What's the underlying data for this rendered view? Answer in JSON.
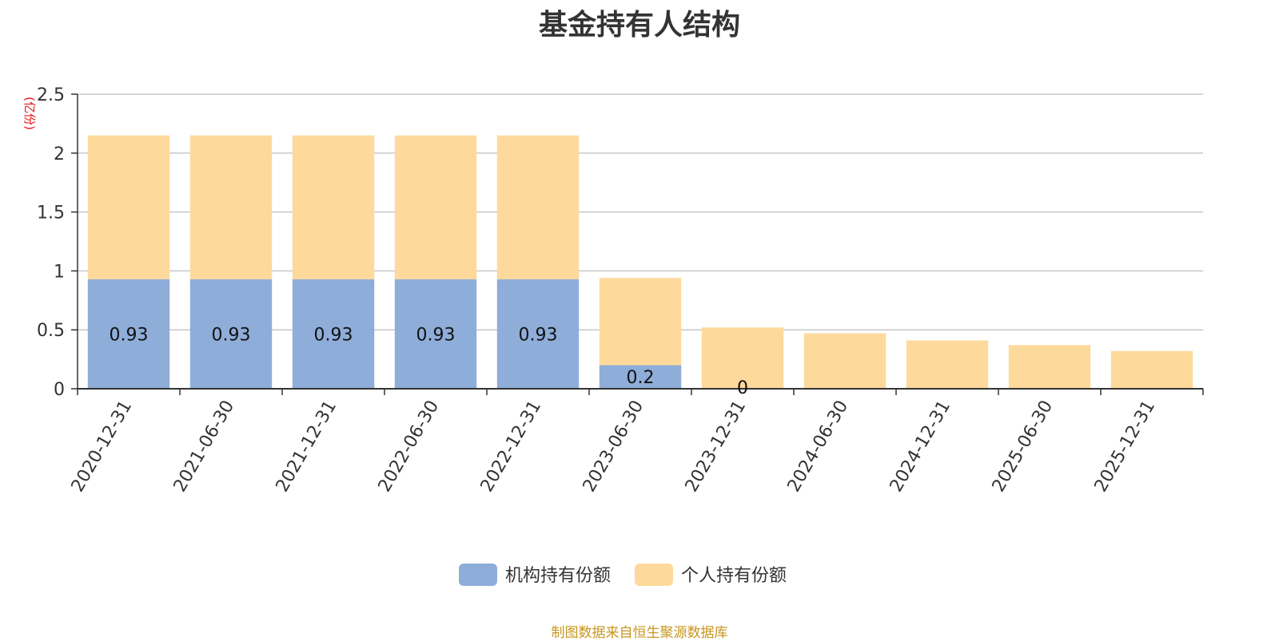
{
  "chart_data": {
    "type": "bar",
    "stacked": true,
    "title": "基金持有人结构",
    "unit_label": "(亿份)",
    "categories": [
      "2020-12-31",
      "2021-06-30",
      "2021-12-31",
      "2022-06-30",
      "2022-12-31",
      "2023-06-30",
      "2023-12-31",
      "2024-06-30",
      "2024-12-31",
      "2025-06-30",
      "2025-12-31"
    ],
    "series": [
      {
        "name": "机构持有份额",
        "color": "#8eadd9",
        "values": [
          0.93,
          0.93,
          0.93,
          0.93,
          0.93,
          0.2,
          0,
          0,
          0,
          0,
          0
        ],
        "labels": [
          "0.93",
          "0.93",
          "0.93",
          "0.93",
          "0.93",
          "0.2",
          "0",
          "",
          "",
          "",
          ""
        ]
      },
      {
        "name": "个人持有份额",
        "color": "#fdd99b",
        "values": [
          1.22,
          1.22,
          1.22,
          1.22,
          1.22,
          0.74,
          0.52,
          0.47,
          0.41,
          0.37,
          0.32
        ]
      }
    ],
    "y_ticks": [
      "0",
      "0.5",
      "1",
      "1.5",
      "2",
      "2.5"
    ],
    "ylim": [
      0,
      2.5
    ],
    "grid": true,
    "legend_position": "bottom-center"
  },
  "footer": {
    "source": "制图数据来自恒生聚源数据库"
  }
}
